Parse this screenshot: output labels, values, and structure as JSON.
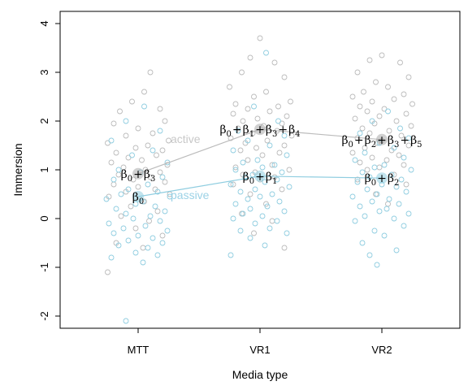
{
  "chart_data": {
    "type": "scatter",
    "title": "",
    "xlabel": "Media type",
    "ylabel": "Immersion",
    "categories": [
      "MTT",
      "VR1",
      "VR2"
    ],
    "ylim": [
      -2.25,
      4.25
    ],
    "yticks": [
      -2,
      -1,
      0,
      1,
      2,
      3,
      4
    ],
    "grid": false,
    "legend": "none",
    "colors": {
      "active": "#bbbbbb",
      "passive": "#8fcde0",
      "mean_dot": "#aaaaaa"
    },
    "series": [
      {
        "name": "active",
        "label_color": "#c8c8c8",
        "means": [
          0.92,
          1.83,
          1.62
        ],
        "points": [
          [
            0.1,
            3.0
          ],
          [
            0.05,
            2.6
          ],
          [
            -0.05,
            2.4
          ],
          [
            0.18,
            2.25
          ],
          [
            -0.15,
            2.2
          ],
          [
            0.22,
            2.0
          ],
          [
            -0.2,
            1.95
          ],
          [
            0.0,
            1.85
          ],
          [
            0.12,
            1.75
          ],
          [
            -0.1,
            1.7
          ],
          [
            0.25,
            1.6
          ],
          [
            -0.25,
            1.55
          ],
          [
            0.08,
            1.5
          ],
          [
            -0.02,
            1.45
          ],
          [
            0.2,
            1.4
          ],
          [
            -0.18,
            1.35
          ],
          [
            0.15,
            1.3
          ],
          [
            -0.08,
            1.25
          ],
          [
            0.03,
            1.2
          ],
          [
            -0.22,
            1.15
          ],
          [
            0.24,
            1.1
          ],
          [
            -0.12,
            1.05
          ],
          [
            0.06,
            1.0
          ],
          [
            0.18,
            0.95
          ],
          [
            -0.16,
            0.9
          ],
          [
            0.1,
            0.85
          ],
          [
            -0.04,
            0.8
          ],
          [
            0.22,
            0.75
          ],
          [
            -0.2,
            0.7
          ],
          [
            0.0,
            0.65
          ],
          [
            0.14,
            0.6
          ],
          [
            -0.1,
            0.55
          ],
          [
            0.26,
            0.5
          ],
          [
            -0.24,
            0.45
          ],
          [
            0.05,
            0.35
          ],
          [
            -0.06,
            0.25
          ],
          [
            0.16,
            0.15
          ],
          [
            -0.14,
            0.05
          ],
          [
            0.09,
            -0.05
          ],
          [
            -0.02,
            -0.2
          ],
          [
            0.2,
            -0.35
          ],
          [
            -0.18,
            -0.5
          ],
          [
            0.04,
            -0.6
          ],
          [
            -0.25,
            -1.1
          ],
          [
            1.0,
            3.7
          ],
          [
            0.92,
            3.3
          ],
          [
            1.12,
            3.2
          ],
          [
            0.85,
            3.0
          ],
          [
            1.2,
            2.9
          ],
          [
            0.75,
            2.7
          ],
          [
            1.05,
            2.6
          ],
          [
            0.95,
            2.5
          ],
          [
            1.25,
            2.4
          ],
          [
            0.8,
            2.35
          ],
          [
            1.15,
            2.3
          ],
          [
            0.9,
            2.25
          ],
          [
            1.08,
            2.2
          ],
          [
            0.78,
            2.15
          ],
          [
            1.22,
            2.1
          ],
          [
            0.98,
            2.05
          ],
          [
            0.86,
            2.0
          ],
          [
            1.18,
            1.95
          ],
          [
            1.03,
            1.9
          ],
          [
            0.82,
            1.85
          ],
          [
            1.14,
            1.8
          ],
          [
            0.94,
            1.75
          ],
          [
            1.26,
            1.7
          ],
          [
            0.76,
            1.65
          ],
          [
            1.06,
            1.6
          ],
          [
            0.88,
            1.55
          ],
          [
            1.2,
            1.5
          ],
          [
            0.97,
            1.45
          ],
          [
            0.84,
            1.4
          ],
          [
            1.16,
            1.35
          ],
          [
            1.02,
            1.3
          ],
          [
            0.9,
            1.2
          ],
          [
            1.1,
            1.1
          ],
          [
            0.8,
            1.05
          ],
          [
            1.24,
            1.0
          ],
          [
            0.96,
            0.95
          ],
          [
            0.86,
            0.9
          ],
          [
            1.12,
            0.85
          ],
          [
            1.0,
            0.8
          ],
          [
            0.78,
            0.7
          ],
          [
            1.18,
            0.6
          ],
          [
            0.92,
            0.5
          ],
          [
            1.05,
            0.3
          ],
          [
            0.85,
            0.1
          ],
          [
            1.1,
            -0.05
          ],
          [
            0.95,
            -0.3
          ],
          [
            1.2,
            -0.6
          ],
          [
            2.0,
            3.35
          ],
          [
            1.9,
            3.25
          ],
          [
            2.15,
            3.2
          ],
          [
            1.8,
            3.0
          ],
          [
            2.22,
            2.9
          ],
          [
            1.95,
            2.8
          ],
          [
            2.05,
            2.7
          ],
          [
            1.85,
            2.6
          ],
          [
            2.18,
            2.55
          ],
          [
            1.76,
            2.5
          ],
          [
            2.1,
            2.45
          ],
          [
            1.92,
            2.4
          ],
          [
            2.25,
            2.35
          ],
          [
            1.82,
            2.3
          ],
          [
            2.02,
            2.25
          ],
          [
            1.88,
            2.2
          ],
          [
            2.2,
            2.15
          ],
          [
            1.98,
            2.1
          ],
          [
            1.78,
            2.05
          ],
          [
            2.12,
            2.0
          ],
          [
            1.94,
            1.95
          ],
          [
            2.24,
            1.9
          ],
          [
            1.84,
            1.85
          ],
          [
            2.06,
            1.8
          ],
          [
            1.9,
            1.75
          ],
          [
            2.16,
            1.7
          ],
          [
            1.8,
            1.65
          ],
          [
            2.0,
            1.6
          ],
          [
            1.96,
            1.55
          ],
          [
            2.22,
            1.5
          ],
          [
            1.86,
            1.45
          ],
          [
            2.08,
            1.4
          ],
          [
            1.76,
            1.35
          ],
          [
            2.14,
            1.3
          ],
          [
            1.92,
            1.25
          ],
          [
            2.04,
            1.2
          ],
          [
            1.82,
            1.15
          ],
          [
            2.18,
            1.1
          ],
          [
            1.98,
            1.05
          ],
          [
            1.88,
            1.0
          ],
          [
            2.1,
            0.9
          ],
          [
            1.8,
            0.8
          ],
          [
            2.2,
            0.7
          ],
          [
            1.95,
            0.5
          ],
          [
            2.05,
            0.3
          ]
        ]
      },
      {
        "name": "passive",
        "label_color": "#9cd2e6",
        "means": [
          0.45,
          0.87,
          0.83
        ],
        "points": [
          [
            0.05,
            2.3
          ],
          [
            -0.1,
            2.0
          ],
          [
            0.18,
            1.8
          ],
          [
            -0.22,
            1.6
          ],
          [
            0.12,
            1.4
          ],
          [
            -0.05,
            1.3
          ],
          [
            0.24,
            1.15
          ],
          [
            -0.16,
            1.0
          ],
          [
            0.02,
            0.95
          ],
          [
            0.2,
            0.85
          ],
          [
            -0.2,
            0.8
          ],
          [
            0.08,
            0.7
          ],
          [
            -0.08,
            0.6
          ],
          [
            0.16,
            0.55
          ],
          [
            -0.14,
            0.5
          ],
          [
            0.26,
            0.45
          ],
          [
            -0.26,
            0.4
          ],
          [
            0.04,
            0.35
          ],
          [
            -0.02,
            0.3
          ],
          [
            0.14,
            0.25
          ],
          [
            -0.18,
            0.2
          ],
          [
            0.22,
            0.15
          ],
          [
            -0.1,
            0.1
          ],
          [
            0.1,
            0.05
          ],
          [
            -0.04,
            0.0
          ],
          [
            0.18,
            -0.05
          ],
          [
            -0.24,
            -0.1
          ],
          [
            0.06,
            -0.15
          ],
          [
            -0.12,
            -0.2
          ],
          [
            0.24,
            -0.25
          ],
          [
            -0.2,
            -0.3
          ],
          [
            0.0,
            -0.35
          ],
          [
            0.12,
            -0.4
          ],
          [
            -0.08,
            -0.45
          ],
          [
            0.2,
            -0.5
          ],
          [
            -0.16,
            -0.55
          ],
          [
            0.08,
            -0.6
          ],
          [
            -0.02,
            -0.7
          ],
          [
            0.16,
            -0.75
          ],
          [
            -0.22,
            -0.8
          ],
          [
            0.04,
            -0.9
          ],
          [
            -0.1,
            -2.1
          ],
          [
            1.05,
            3.4
          ],
          [
            0.95,
            2.3
          ],
          [
            1.15,
            2.0
          ],
          [
            0.82,
            1.8
          ],
          [
            1.2,
            1.7
          ],
          [
            0.9,
            1.6
          ],
          [
            1.08,
            1.5
          ],
          [
            0.78,
            1.4
          ],
          [
            1.22,
            1.3
          ],
          [
            0.98,
            1.2
          ],
          [
            0.86,
            1.15
          ],
          [
            1.12,
            1.1
          ],
          [
            1.02,
            1.05
          ],
          [
            0.8,
            1.0
          ],
          [
            1.18,
            0.95
          ],
          [
            0.94,
            0.9
          ],
          [
            0.88,
            0.85
          ],
          [
            1.14,
            0.8
          ],
          [
            1.04,
            0.75
          ],
          [
            0.76,
            0.7
          ],
          [
            1.24,
            0.65
          ],
          [
            0.96,
            0.6
          ],
          [
            0.84,
            0.55
          ],
          [
            1.1,
            0.5
          ],
          [
            1.0,
            0.45
          ],
          [
            0.9,
            0.4
          ],
          [
            1.16,
            0.35
          ],
          [
            0.8,
            0.3
          ],
          [
            1.06,
            0.25
          ],
          [
            0.92,
            0.2
          ],
          [
            1.2,
            0.15
          ],
          [
            0.86,
            0.1
          ],
          [
            1.02,
            0.05
          ],
          [
            0.78,
            0.0
          ],
          [
            1.14,
            -0.05
          ],
          [
            0.96,
            -0.1
          ],
          [
            1.08,
            -0.2
          ],
          [
            0.84,
            -0.25
          ],
          [
            1.22,
            -0.3
          ],
          [
            0.92,
            -0.4
          ],
          [
            1.04,
            -0.55
          ],
          [
            0.76,
            -0.75
          ],
          [
            2.05,
            2.2
          ],
          [
            1.92,
            2.0
          ],
          [
            2.15,
            1.85
          ],
          [
            1.82,
            1.75
          ],
          [
            2.22,
            1.65
          ],
          [
            1.98,
            1.55
          ],
          [
            2.1,
            1.45
          ],
          [
            1.86,
            1.35
          ],
          [
            2.18,
            1.25
          ],
          [
            1.78,
            1.2
          ],
          [
            2.02,
            1.1
          ],
          [
            1.94,
            1.05
          ],
          [
            2.24,
            1.0
          ],
          [
            1.84,
            0.95
          ],
          [
            2.08,
            0.9
          ],
          [
            1.9,
            0.85
          ],
          [
            2.16,
            0.8
          ],
          [
            1.8,
            0.75
          ],
          [
            2.0,
            0.7
          ],
          [
            2.12,
            0.65
          ],
          [
            1.88,
            0.6
          ],
          [
            2.2,
            0.55
          ],
          [
            1.96,
            0.5
          ],
          [
            1.76,
            0.45
          ],
          [
            2.06,
            0.4
          ],
          [
            1.92,
            0.35
          ],
          [
            2.14,
            0.3
          ],
          [
            1.82,
            0.25
          ],
          [
            2.04,
            0.2
          ],
          [
            1.98,
            0.15
          ],
          [
            2.22,
            0.1
          ],
          [
            1.86,
            0.05
          ],
          [
            2.1,
            0.0
          ],
          [
            1.78,
            -0.05
          ],
          [
            2.18,
            -0.15
          ],
          [
            1.94,
            -0.25
          ],
          [
            2.02,
            -0.35
          ],
          [
            1.84,
            -0.5
          ],
          [
            2.12,
            -0.65
          ],
          [
            1.9,
            -0.75
          ],
          [
            1.96,
            -0.95
          ]
        ]
      }
    ],
    "annotations": [
      {
        "series": "active",
        "text": "active"
      },
      {
        "series": "passive",
        "text": "passive"
      }
    ],
    "equations": {
      "mtt_active": "β0+β3",
      "mtt_passive": "β0",
      "vr1_active": "β0+β1+β3+β4",
      "vr1_passive": "β0+β1",
      "vr2_active": "β0+β2+β3+β5",
      "vr2_passive": "β0+β2"
    }
  }
}
